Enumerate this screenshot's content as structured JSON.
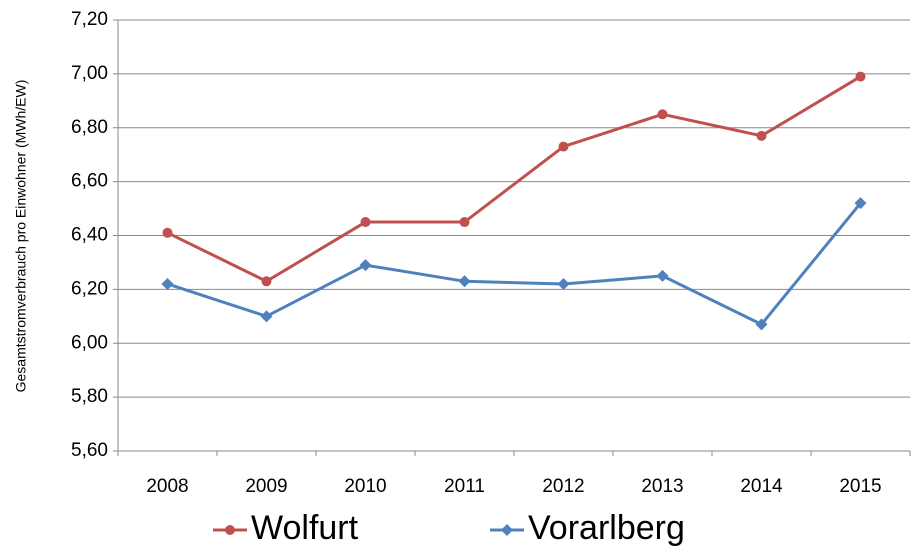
{
  "chart_data": {
    "type": "line",
    "y_label": "Gesamtstromverbrauch pro Einwohner (MWh/EW)",
    "categories": [
      "2008",
      "2009",
      "2010",
      "2011",
      "2012",
      "2013",
      "2014",
      "2015"
    ],
    "series": [
      {
        "name": "Wolfurt",
        "color": "#c0504d",
        "marker": "circle",
        "values": [
          6.41,
          6.23,
          6.45,
          6.45,
          6.73,
          6.85,
          6.77,
          6.99
        ]
      },
      {
        "name": "Vorarlberg",
        "color": "#4f81bd",
        "marker": "diamond",
        "values": [
          6.22,
          6.1,
          6.29,
          6.23,
          6.22,
          6.25,
          6.07,
          6.52
        ]
      }
    ],
    "ylim": [
      5.6,
      7.2
    ],
    "yticks": [
      {
        "value": 5.6,
        "label": "5,60"
      },
      {
        "value": 5.8,
        "label": "5,80"
      },
      {
        "value": 6.0,
        "label": "6,00"
      },
      {
        "value": 6.2,
        "label": "6,20"
      },
      {
        "value": 6.4,
        "label": "6,40"
      },
      {
        "value": 6.6,
        "label": "6,60"
      },
      {
        "value": 6.8,
        "label": "6,80"
      },
      {
        "value": 7.0,
        "label": "7,00"
      },
      {
        "value": 7.2,
        "label": "7,20"
      }
    ],
    "grid": true,
    "legend": "bottom"
  }
}
